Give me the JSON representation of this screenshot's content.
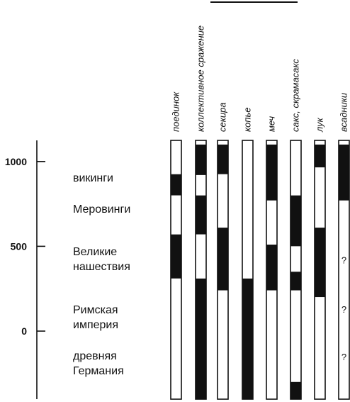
{
  "colors": {
    "ink": "#111111",
    "paper": "#ffffff"
  },
  "axis": {
    "ticks": [
      {
        "label": "1000",
        "value": 1000
      },
      {
        "label": "500",
        "value": 500
      },
      {
        "label": "0",
        "value": 0
      }
    ]
  },
  "eras": [
    {
      "lines": [
        "викинги"
      ]
    },
    {
      "lines": [
        "Меровинги"
      ]
    },
    {
      "lines": [
        "Великие",
        "нашествия"
      ]
    },
    {
      "lines": [
        "Римская",
        "империя"
      ]
    },
    {
      "lines": [
        "древняя",
        "Германия"
      ]
    }
  ],
  "columns": [
    {
      "label": "поединок",
      "segments": [
        {
          "from": 925,
          "to": 1100,
          "shade": "white"
        },
        {
          "from": 800,
          "to": 925,
          "shade": "black"
        },
        {
          "from": 570,
          "to": 800,
          "shade": "white"
        },
        {
          "from": 310,
          "to": 570,
          "shade": "black"
        },
        {
          "from": -400,
          "to": 310,
          "shade": "white"
        }
      ]
    },
    {
      "label": "коллективное сражение",
      "segments": [
        {
          "from": 920,
          "to": 1100,
          "shade": "black"
        },
        {
          "from": 800,
          "to": 920,
          "shade": "white"
        },
        {
          "from": 570,
          "to": 800,
          "shade": "black"
        },
        {
          "from": 310,
          "to": 570,
          "shade": "white"
        },
        {
          "from": -400,
          "to": 310,
          "shade": "black"
        }
      ]
    },
    {
      "label": "секира",
      "segments": [
        {
          "from": 925,
          "to": 1100,
          "shade": "black"
        },
        {
          "from": 610,
          "to": 925,
          "shade": "white"
        },
        {
          "from": 240,
          "to": 610,
          "shade": "black"
        },
        {
          "from": -400,
          "to": 240,
          "shade": "white"
        }
      ]
    },
    {
      "label": "копье",
      "segments": [
        {
          "from": 310,
          "to": 1100,
          "shade": "white"
        },
        {
          "from": -400,
          "to": 310,
          "shade": "black"
        }
      ]
    },
    {
      "label": "меч",
      "segments": [
        {
          "from": 770,
          "to": 1100,
          "shade": "black"
        },
        {
          "from": 510,
          "to": 770,
          "shade": "white"
        },
        {
          "from": 240,
          "to": 510,
          "shade": "black"
        },
        {
          "from": -400,
          "to": 240,
          "shade": "white"
        }
      ]
    },
    {
      "label": "сакс, скрамасакс",
      "segments": [
        {
          "from": 800,
          "to": 1100,
          "shade": "white"
        },
        {
          "from": 500,
          "to": 800,
          "shade": "black"
        },
        {
          "from": 350,
          "to": 500,
          "shade": "white"
        },
        {
          "from": 240,
          "to": 350,
          "shade": "black"
        },
        {
          "from": -300,
          "to": 240,
          "shade": "white"
        },
        {
          "from": -400,
          "to": -300,
          "shade": "black"
        }
      ]
    },
    {
      "label": "лук",
      "segments": [
        {
          "from": 965,
          "to": 1100,
          "shade": "black"
        },
        {
          "from": 610,
          "to": 965,
          "shade": "white"
        },
        {
          "from": 200,
          "to": 610,
          "shade": "black"
        },
        {
          "from": -400,
          "to": 200,
          "shade": "white"
        }
      ]
    },
    {
      "label": "всадники",
      "segments": [
        {
          "from": 770,
          "to": 1100,
          "shade": "black"
        },
        {
          "from": -400,
          "to": 770,
          "shade": "white"
        }
      ],
      "questions": [
        {
          "text": "?",
          "value": 420
        },
        {
          "text": "?",
          "value": 130
        },
        {
          "text": "?",
          "value": -150
        }
      ]
    }
  ]
}
